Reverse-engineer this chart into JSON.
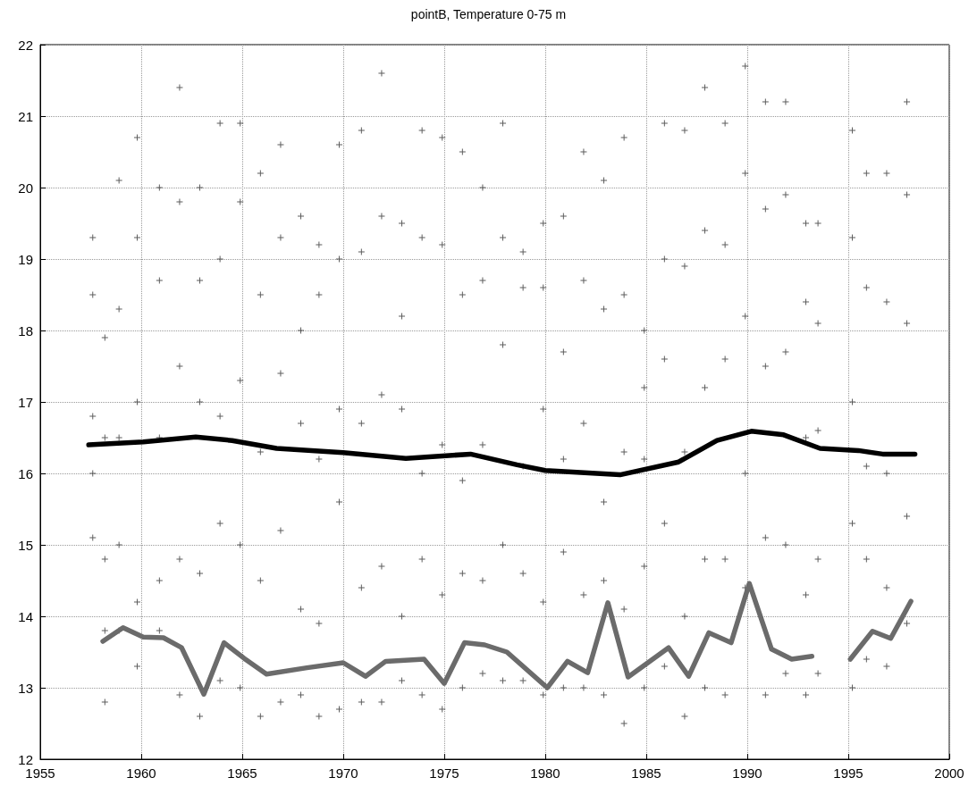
{
  "chart_data": {
    "type": "scatter",
    "title": "pointB, Temperature 0-75 m",
    "xlim": [
      1955,
      2000
    ],
    "xticks": [
      1955,
      1960,
      1965,
      1970,
      1975,
      1980,
      1985,
      1990,
      1995,
      2000
    ],
    "ylim": [
      12,
      22
    ],
    "yticks": [
      12,
      13,
      14,
      15,
      16,
      17,
      18,
      19,
      20,
      21,
      22
    ],
    "grid": true,
    "series": [
      {
        "marker": "cross",
        "color": "#333333",
        "x": [
          1957.6,
          1957.6,
          1957.6,
          1957.6,
          1957.6,
          1958.2,
          1958.2,
          1958.2,
          1958.2,
          1958.2,
          1958.9,
          1958.9,
          1958.9,
          1958.9,
          1958.9,
          1959.8,
          1959.8,
          1959.8,
          1959.8,
          1959.8,
          1960.9,
          1960.9,
          1960.9,
          1960.9,
          1960.9,
          1961.9,
          1961.9,
          1961.9,
          1961.9,
          1961.9,
          1962.9,
          1962.9,
          1962.9,
          1962.9,
          1962.9,
          1963.9,
          1963.9,
          1963.9,
          1963.9,
          1963.9,
          1964.9,
          1964.9,
          1964.9,
          1964.9,
          1964.9,
          1965.9,
          1965.9,
          1965.9,
          1965.9,
          1965.9,
          1966.9,
          1966.9,
          1966.9,
          1966.9,
          1966.9,
          1967.9,
          1967.9,
          1967.9,
          1967.9,
          1967.9,
          1968.8,
          1968.8,
          1968.8,
          1968.8,
          1968.8,
          1969.8,
          1969.8,
          1969.8,
          1969.8,
          1969.8,
          1970.9,
          1970.9,
          1970.9,
          1970.9,
          1970.9,
          1971.9,
          1971.9,
          1971.9,
          1971.9,
          1971.9,
          1972.9,
          1972.9,
          1972.9,
          1972.9,
          1972.9,
          1973.9,
          1973.9,
          1973.9,
          1973.9,
          1973.9,
          1974.9,
          1974.9,
          1974.9,
          1974.9,
          1974.9,
          1975.9,
          1975.9,
          1975.9,
          1975.9,
          1975.9,
          1976.9,
          1976.9,
          1976.9,
          1976.9,
          1976.9,
          1977.9,
          1977.9,
          1977.9,
          1977.9,
          1977.9,
          1978.9,
          1978.9,
          1978.9,
          1978.9,
          1978.9,
          1979.9,
          1979.9,
          1979.9,
          1979.9,
          1979.9,
          1980.9,
          1980.9,
          1980.9,
          1980.9,
          1980.9,
          1981.9,
          1981.9,
          1981.9,
          1981.9,
          1981.9,
          1982.9,
          1982.9,
          1982.9,
          1982.9,
          1982.9,
          1983.9,
          1983.9,
          1983.9,
          1983.9,
          1983.9,
          1984.9,
          1984.9,
          1984.9,
          1984.9,
          1984.9,
          1985.9,
          1985.9,
          1985.9,
          1985.9,
          1985.9,
          1986.9,
          1986.9,
          1986.9,
          1986.9,
          1986.9,
          1987.9,
          1987.9,
          1987.9,
          1987.9,
          1987.9,
          1988.9,
          1988.9,
          1988.9,
          1988.9,
          1988.9,
          1989.9,
          1989.9,
          1989.9,
          1989.9,
          1989.9,
          1990.9,
          1990.9,
          1990.9,
          1990.9,
          1990.9,
          1991.9,
          1991.9,
          1991.9,
          1991.9,
          1991.9,
          1992.9,
          1992.9,
          1992.9,
          1992.9,
          1992.9,
          1993.5,
          1993.5,
          1993.5,
          1993.5,
          1993.5,
          1995.2,
          1995.2,
          1995.2,
          1995.2,
          1995.2,
          1995.9,
          1995.9,
          1995.9,
          1995.9,
          1995.9,
          1996.9,
          1996.9,
          1996.9,
          1996.9,
          1996.9,
          1997.9,
          1997.9,
          1997.9,
          1997.9,
          1997.9
        ],
        "values": [
          19.3,
          18.5,
          16.8,
          16.0,
          15.1,
          17.9,
          16.5,
          14.8,
          13.8,
          12.8,
          20.1,
          18.3,
          16.5,
          15.0,
          13.8,
          20.7,
          19.3,
          17.0,
          14.2,
          13.3,
          20.0,
          18.7,
          16.5,
          14.5,
          13.8,
          21.4,
          19.8,
          17.5,
          14.8,
          12.9,
          20.0,
          18.7,
          17.0,
          14.6,
          12.6,
          20.9,
          19.0,
          16.8,
          15.3,
          13.1,
          20.9,
          19.8,
          17.3,
          15.0,
          13.0,
          20.2,
          18.5,
          16.3,
          14.5,
          12.6,
          20.6,
          19.3,
          17.4,
          15.2,
          12.8,
          19.6,
          18.0,
          16.7,
          14.1,
          12.9,
          19.2,
          18.5,
          16.2,
          13.9,
          12.6,
          20.6,
          19.0,
          16.9,
          15.6,
          12.7,
          20.8,
          19.1,
          16.7,
          14.4,
          12.8,
          21.6,
          19.6,
          17.1,
          14.7,
          12.8,
          19.5,
          18.2,
          16.9,
          14.0,
          13.1,
          20.8,
          19.3,
          16.0,
          14.8,
          12.9,
          20.7,
          19.2,
          16.4,
          14.3,
          12.7,
          20.5,
          18.5,
          15.9,
          14.6,
          13.0,
          20.0,
          18.7,
          16.4,
          14.5,
          13.2,
          20.9,
          19.3,
          17.8,
          15.0,
          13.1,
          19.1,
          18.6,
          16.1,
          14.6,
          13.1,
          19.5,
          18.6,
          16.9,
          14.2,
          12.9,
          19.6,
          17.7,
          16.2,
          14.9,
          13.0,
          20.5,
          18.7,
          16.7,
          14.3,
          13.0,
          20.1,
          18.3,
          15.6,
          14.5,
          12.9,
          20.7,
          18.5,
          16.3,
          14.1,
          12.5,
          18.0,
          17.2,
          16.2,
          14.7,
          13.0,
          20.9,
          19.0,
          17.6,
          15.3,
          13.3,
          20.8,
          18.9,
          16.3,
          14.0,
          12.6,
          21.4,
          19.4,
          17.2,
          14.8,
          13.0,
          20.9,
          19.2,
          17.6,
          14.8,
          12.9,
          21.7,
          20.2,
          18.2,
          16.0,
          14.4,
          21.2,
          19.7,
          17.5,
          15.1,
          12.9,
          21.2,
          19.9,
          17.7,
          15.0,
          13.2,
          19.5,
          18.4,
          16.5,
          14.3,
          12.9,
          19.5,
          18.1,
          16.6,
          14.8,
          13.2,
          20.8,
          19.3,
          17.0,
          15.3,
          13.0,
          20.2,
          18.6,
          16.1,
          14.8,
          13.4,
          20.2,
          18.4,
          16.0,
          14.4,
          13.3,
          21.2,
          19.9,
          18.1,
          15.4,
          13.9
        ]
      },
      {
        "type": "line",
        "marker": "none",
        "color": "#000000",
        "x": [
          1957.4,
          1960.1,
          1962.7,
          1964.5,
          1966.7,
          1970.0,
          1973.1,
          1976.3,
          1978.6,
          1980.0,
          1983.7,
          1986.6,
          1988.5,
          1990.2,
          1991.8,
          1993.6,
          1995.5,
          1996.7,
          1998.3
        ],
        "values": [
          16.4,
          16.44,
          16.51,
          16.46,
          16.35,
          16.29,
          16.21,
          16.27,
          16.12,
          16.04,
          15.98,
          16.16,
          16.46,
          16.59,
          16.54,
          16.35,
          16.32,
          16.27,
          16.27
        ]
      },
      {
        "type": "line",
        "marker": "none",
        "color": "#6b6b6b",
        "x": [
          1958.1,
          1959.1,
          1960.1,
          1961.1,
          1962.0,
          1963.1,
          1964.1,
          1965.1,
          1966.2,
          1968.2,
          1970.0,
          1971.1,
          1972.1,
          1974.0,
          1975.0,
          1976.0,
          1977.0,
          1978.1,
          1980.1,
          1981.1,
          1982.1,
          1983.1,
          1984.1,
          1986.1,
          1987.1,
          1988.1,
          1989.2,
          1990.1,
          1991.2,
          1992.2,
          1993.2,
          1994.0,
          1995.1,
          1996.2,
          1997.1,
          1998.1
        ],
        "values": [
          13.65,
          13.84,
          13.71,
          13.7,
          13.56,
          12.91,
          13.63,
          13.41,
          13.19,
          13.28,
          13.35,
          13.16,
          13.37,
          13.4,
          13.06,
          13.63,
          13.6,
          13.5,
          13.0,
          13.37,
          13.21,
          14.19,
          13.15,
          13.56,
          13.16,
          13.77,
          13.63,
          14.46,
          13.54,
          13.4,
          13.44,
          null,
          13.4,
          13.79,
          13.69,
          14.21
        ]
      }
    ]
  }
}
